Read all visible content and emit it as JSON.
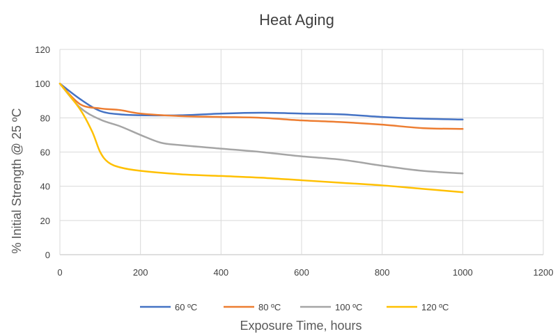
{
  "chart_data": {
    "type": "line",
    "title": "Heat Aging",
    "xlabel": "Exposure Time, hours",
    "ylabel": "% Initial Strength @ 25 ºC",
    "xlim": [
      0,
      1200
    ],
    "ylim": [
      0,
      120
    ],
    "xticks": [
      "0",
      "200",
      "400",
      "600",
      "800",
      "1000",
      "1200"
    ],
    "yticks": [
      "0",
      "20",
      "40",
      "60",
      "80",
      "100",
      "120"
    ],
    "grid": true,
    "legend": "bottom",
    "series": [
      {
        "name": "60 ºC",
        "color": "#4472C4",
        "x": [
          0,
          50,
          100,
          150,
          200,
          300,
          400,
          500,
          600,
          700,
          800,
          900,
          1000
        ],
        "y": [
          100,
          91,
          84,
          82,
          81.5,
          81.5,
          82.5,
          83,
          82.5,
          82,
          80.5,
          79.5,
          79
        ]
      },
      {
        "name": "80 ºC",
        "color": "#ED7D31",
        "x": [
          0,
          50,
          100,
          150,
          200,
          300,
          400,
          500,
          600,
          700,
          800,
          900,
          1000
        ],
        "y": [
          100,
          88,
          85.5,
          84.5,
          82.5,
          81,
          80.5,
          80,
          78.5,
          77.5,
          76,
          74,
          73.5
        ]
      },
      {
        "name": "100 ºC",
        "color": "#A5A5A5",
        "x": [
          0,
          50,
          100,
          150,
          200,
          250,
          300,
          400,
          500,
          600,
          700,
          800,
          900,
          1000
        ],
        "y": [
          100,
          86,
          79,
          75,
          70,
          65.5,
          64,
          62,
          60,
          57.5,
          55.5,
          52,
          49,
          47.5
        ]
      },
      {
        "name": "120 ºC",
        "color": "#FFC000",
        "x": [
          0,
          50,
          80,
          100,
          120,
          150,
          200,
          300,
          400,
          500,
          600,
          700,
          800,
          900,
          1000
        ],
        "y": [
          100,
          85,
          72,
          60,
          54,
          51,
          49,
          47,
          46,
          45,
          43.5,
          42,
          40.5,
          38.5,
          36.5
        ]
      }
    ]
  }
}
